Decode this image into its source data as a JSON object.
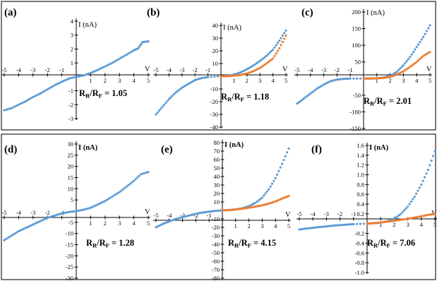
{
  "colors": {
    "series_blue": "#5b9bd5",
    "series_orange": "#ed7d31"
  },
  "chart_data": [
    {
      "type": "scatter",
      "panel": "(a)",
      "x_label": "V",
      "y_label": "I (nA)",
      "ratio_label": "R",
      "ratio_sub_r": "R",
      "ratio_sub_f": "F",
      "ratio_value": "= 1.05",
      "xlim": [
        -5,
        5
      ],
      "ylim": [
        -3,
        4
      ],
      "x_ticks": [
        "-5",
        "-4",
        "-3",
        "-2",
        "-1",
        "1",
        "2",
        "3",
        "4",
        "5"
      ],
      "y_ticks": [
        "-3",
        "-2",
        "-1",
        "1",
        "2",
        "3",
        "4"
      ],
      "series": [
        {
          "color": "blue",
          "points": [
            [
              -5,
              -2.4
            ],
            [
              -4.5,
              -2.25
            ],
            [
              -4,
              -2.0
            ],
            [
              -3.5,
              -1.75
            ],
            [
              -3,
              -1.45
            ],
            [
              -2.5,
              -1.2
            ],
            [
              -2,
              -0.9
            ],
            [
              -1.5,
              -0.6
            ],
            [
              -1,
              -0.35
            ],
            [
              -0.5,
              -0.12
            ],
            [
              0,
              0
            ],
            [
              0.5,
              0.1
            ],
            [
              1,
              0.28
            ],
            [
              1.5,
              0.5
            ],
            [
              2,
              0.75
            ],
            [
              2.5,
              1.0
            ],
            [
              3,
              1.3
            ],
            [
              3.5,
              1.6
            ],
            [
              4,
              1.9
            ],
            [
              4.3,
              2.05
            ],
            [
              4.6,
              2.5
            ],
            [
              5,
              2.55
            ]
          ]
        }
      ]
    },
    {
      "type": "scatter",
      "panel": "(b)",
      "x_label": "V",
      "y_label": "I (nA)",
      "ratio_label": "R",
      "ratio_sub_r": "R",
      "ratio_sub_f": "F",
      "ratio_value": "= 1.18",
      "xlim": [
        -5,
        5
      ],
      "ylim": [
        -40,
        40
      ],
      "x_ticks": [
        "-5",
        "-4",
        "-3",
        "-2",
        "-1",
        "1",
        "2",
        "3",
        "4",
        "5"
      ],
      "y_ticks": [
        "-40",
        "-30",
        "-20",
        "-10",
        "10",
        "20",
        "30",
        "40"
      ],
      "series": [
        {
          "color": "blue",
          "points": [
            [
              -5,
              -30
            ],
            [
              -4.5,
              -24
            ],
            [
              -4,
              -18
            ],
            [
              -3.5,
              -13
            ],
            [
              -3,
              -9
            ],
            [
              -2.5,
              -6
            ],
            [
              -2,
              -3
            ],
            [
              -1.5,
              -1.5
            ],
            [
              -1,
              -0.6
            ],
            [
              0,
              0
            ],
            [
              0.5,
              0.3
            ],
            [
              1,
              1.2
            ],
            [
              1.5,
              3
            ],
            [
              2,
              5.5
            ],
            [
              2.5,
              8.5
            ],
            [
              3,
              12
            ],
            [
              3.5,
              16
            ],
            [
              4,
              21
            ],
            [
              4.5,
              28
            ],
            [
              5,
              36
            ]
          ]
        },
        {
          "color": "orange",
          "points": [
            [
              0,
              0
            ],
            [
              0.5,
              0.1
            ],
            [
              1,
              0.4
            ],
            [
              1.5,
              1
            ],
            [
              2,
              2.2
            ],
            [
              2.5,
              4
            ],
            [
              3,
              6.5
            ],
            [
              3.5,
              10
            ],
            [
              4,
              14
            ],
            [
              4.5,
              22
            ],
            [
              5,
              32
            ]
          ]
        }
      ]
    },
    {
      "type": "scatter",
      "panel": "(c)",
      "x_label": "V",
      "y_label": "I (nA)",
      "ratio_label": "R",
      "ratio_sub_r": "R",
      "ratio_sub_f": "F",
      "ratio_value": "= 2.01",
      "xlim": [
        -5,
        5
      ],
      "ylim": [
        -150,
        200
      ],
      "x_ticks": [
        "-5",
        "-4",
        "-3",
        "-2",
        "-1",
        "1",
        "2",
        "3",
        "4",
        "5"
      ],
      "y_ticks": [
        "-150",
        "-100",
        "-50",
        "50",
        "100",
        "150",
        "200"
      ],
      "series": [
        {
          "color": "blue",
          "points": [
            [
              -5,
              -75
            ],
            [
              -4.5,
              -60
            ],
            [
              -4,
              -45
            ],
            [
              -3.5,
              -30
            ],
            [
              -3,
              -18
            ],
            [
              -2.5,
              -8
            ],
            [
              -2,
              -3
            ],
            [
              -1.5,
              -1
            ],
            [
              -1,
              0
            ],
            [
              0,
              0
            ],
            [
              0.5,
              0
            ],
            [
              1,
              1
            ],
            [
              1.5,
              3
            ],
            [
              2,
              8
            ],
            [
              2.5,
              20
            ],
            [
              3,
              40
            ],
            [
              3.5,
              65
            ],
            [
              4,
              95
            ],
            [
              4.5,
              125
            ],
            [
              5,
              160
            ]
          ]
        },
        {
          "color": "orange",
          "points": [
            [
              0,
              0
            ],
            [
              0.5,
              0
            ],
            [
              1,
              0.5
            ],
            [
              1.5,
              2
            ],
            [
              2,
              5
            ],
            [
              2.5,
              12
            ],
            [
              3,
              22
            ],
            [
              3.5,
              35
            ],
            [
              4,
              50
            ],
            [
              4.5,
              68
            ],
            [
              5,
              80
            ]
          ]
        }
      ]
    },
    {
      "type": "scatter",
      "panel": "(d)",
      "x_label": "V",
      "y_label": "I (nA)",
      "ratio_label": "R",
      "ratio_sub_r": "R",
      "ratio_sub_f": "F",
      "ratio_value": "= 1.28",
      "xlim": [
        -5,
        5
      ],
      "ylim": [
        -30,
        30
      ],
      "x_ticks": [
        "-5",
        "-4",
        "-3",
        "-2",
        "-1",
        "1",
        "2",
        "3",
        "4",
        "5"
      ],
      "y_ticks": [
        "-30",
        "-25",
        "-20",
        "-15",
        "-10",
        "-5",
        "5",
        "10",
        "15",
        "20",
        "25",
        "30"
      ],
      "series": [
        {
          "color": "blue",
          "points": [
            [
              -5,
              -13
            ],
            [
              -4.5,
              -11
            ],
            [
              -4,
              -9
            ],
            [
              -3.5,
              -7.5
            ],
            [
              -3,
              -6
            ],
            [
              -2.5,
              -4.5
            ],
            [
              -2,
              -3
            ],
            [
              -1.5,
              -2
            ],
            [
              -1,
              -1
            ],
            [
              -0.5,
              -0.4
            ],
            [
              0,
              0
            ],
            [
              0.5,
              0.6
            ],
            [
              1,
              1.5
            ],
            [
              1.5,
              3
            ],
            [
              2,
              4.5
            ],
            [
              2.5,
              6.5
            ],
            [
              3,
              8.5
            ],
            [
              3.5,
              11
            ],
            [
              4,
              13.5
            ],
            [
              4.5,
              16.5
            ],
            [
              5,
              17.5
            ]
          ]
        }
      ]
    },
    {
      "type": "scatter",
      "panel": "(e)",
      "x_label": "V",
      "y_label": "I (nA)",
      "ratio_label": "R",
      "ratio_sub_r": "R",
      "ratio_sub_f": "F",
      "ratio_value": "= 4.15",
      "xlim": [
        -5,
        5
      ],
      "ylim": [
        -80,
        80
      ],
      "x_ticks": [
        "-5",
        "-4",
        "-3",
        "-2",
        "-1",
        "1",
        "2",
        "3",
        "4",
        "5"
      ],
      "y_ticks": [
        "-80",
        "-70",
        "-60",
        "-50",
        "-40",
        "-30",
        "-20",
        "-10",
        "10",
        "20",
        "30",
        "40",
        "50",
        "60",
        "70",
        "80"
      ],
      "series": [
        {
          "color": "blue",
          "points": [
            [
              -5,
              -20
            ],
            [
              -4.5,
              -16
            ],
            [
              -4,
              -13
            ],
            [
              -3.5,
              -10
            ],
            [
              -3,
              -8
            ],
            [
              -2.5,
              -6
            ],
            [
              -2,
              -4
            ],
            [
              -1.5,
              -2.5
            ],
            [
              -1,
              -1.5
            ],
            [
              -0.5,
              -0.5
            ],
            [
              0,
              0
            ],
            [
              0.5,
              0.5
            ],
            [
              1,
              1.2
            ],
            [
              1.5,
              2.5
            ],
            [
              2,
              5
            ],
            [
              2.5,
              9
            ],
            [
              3,
              15
            ],
            [
              3.5,
              25
            ],
            [
              4,
              38
            ],
            [
              4.5,
              55
            ],
            [
              5,
              73
            ]
          ]
        },
        {
          "color": "orange",
          "points": [
            [
              0,
              0
            ],
            [
              0.5,
              0.3
            ],
            [
              1,
              1
            ],
            [
              1.5,
              2
            ],
            [
              2,
              3.2
            ],
            [
              2.5,
              4.5
            ],
            [
              3,
              6
            ],
            [
              3.5,
              8
            ],
            [
              4,
              10.5
            ],
            [
              4.5,
              14
            ],
            [
              5,
              17
            ]
          ]
        }
      ]
    },
    {
      "type": "scatter",
      "panel": "(f)",
      "x_label": "V",
      "y_label": "I (nA)",
      "ratio_label": "R",
      "ratio_sub_r": "R",
      "ratio_sub_f": "F",
      "ratio_value": "= 7.06",
      "xlim": [
        -5,
        5
      ],
      "ylim": [
        -1.0,
        1.6
      ],
      "x_ticks": [
        "-5",
        "-4",
        "-3",
        "-2",
        "-1",
        "1",
        "2",
        "3",
        "4",
        "5"
      ],
      "y_ticks": [
        "-1.0",
        "-0.8",
        "-0.6",
        "-0.4",
        "-0.2",
        "0.2",
        "0.4",
        "0.6",
        "0.8",
        "1.0",
        "1.2",
        "1.4",
        "1.6"
      ],
      "series": [
        {
          "color": "blue",
          "points": [
            [
              -5,
              -0.12
            ],
            [
              -4.5,
              -0.1
            ],
            [
              -4,
              -0.085
            ],
            [
              -3.5,
              -0.07
            ],
            [
              -3,
              -0.055
            ],
            [
              -2.5,
              -0.04
            ],
            [
              -2,
              -0.03
            ],
            [
              -1.5,
              -0.02
            ],
            [
              -1,
              -0.01
            ],
            [
              0,
              0
            ],
            [
              0.5,
              0.01
            ],
            [
              1,
              0.02
            ],
            [
              1.5,
              0.05
            ],
            [
              2,
              0.1
            ],
            [
              2.5,
              0.2
            ],
            [
              3,
              0.35
            ],
            [
              3.5,
              0.55
            ],
            [
              4,
              0.8
            ],
            [
              4.5,
              1.1
            ],
            [
              5,
              1.48
            ]
          ]
        },
        {
          "color": "orange",
          "points": [
            [
              0,
              0
            ],
            [
              0.5,
              0.01
            ],
            [
              1,
              0.025
            ],
            [
              1.5,
              0.04
            ],
            [
              2,
              0.06
            ],
            [
              2.5,
              0.08
            ],
            [
              3,
              0.1
            ],
            [
              3.5,
              0.125
            ],
            [
              4,
              0.15
            ],
            [
              4.5,
              0.18
            ],
            [
              5,
              0.2
            ]
          ]
        }
      ]
    }
  ]
}
